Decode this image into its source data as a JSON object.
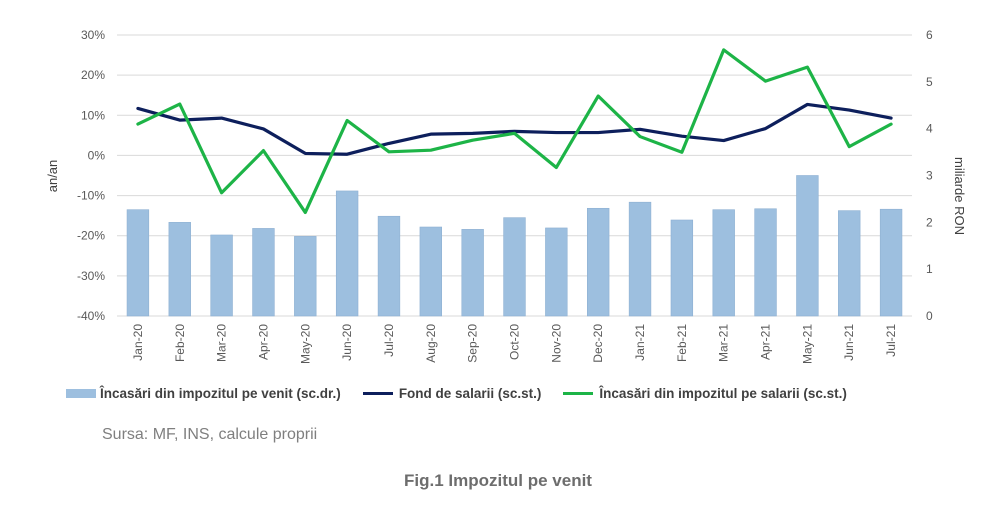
{
  "chart_data": {
    "type": "bar+line",
    "categories": [
      "Jan-20",
      "Feb-20",
      "Mar-20",
      "Apr-20",
      "May-20",
      "Jun-20",
      "Jul-20",
      "Aug-20",
      "Sep-20",
      "Oct-20",
      "Nov-20",
      "Dec-20",
      "Jan-21",
      "Feb-21",
      "Mar-21",
      "Apr-21",
      "May-21",
      "Jun-21",
      "Jul-21"
    ],
    "left_axis": {
      "label": "an/an",
      "min": -40,
      "max": 30,
      "step": 10,
      "unit": "%",
      "ticks": [
        "30%",
        "20%",
        "10%",
        "0%",
        "-10%",
        "-20%",
        "-30%",
        "-40%"
      ]
    },
    "right_axis": {
      "label": "miliarde RON",
      "min": 0,
      "max": 6,
      "step": 1,
      "ticks": [
        "6",
        "5",
        "4",
        "3",
        "2",
        "1",
        "0"
      ]
    },
    "series": [
      {
        "name": "Încasări din impozitul pe venit (sc.dr.)",
        "type": "bar",
        "axis": "right",
        "color": "#9dbfdf",
        "values": [
          2.27,
          2.0,
          1.73,
          1.87,
          1.7,
          2.67,
          2.13,
          1.9,
          1.85,
          2.1,
          1.88,
          2.3,
          2.43,
          2.05,
          2.27,
          2.29,
          3.0,
          2.25,
          2.28
        ]
      },
      {
        "name": "Fond de salarii (sc.st.)",
        "type": "line",
        "axis": "left",
        "color": "#0d1f5c",
        "values": [
          11.7,
          8.8,
          9.3,
          6.6,
          0.5,
          0.3,
          3.0,
          5.3,
          5.5,
          6.0,
          5.7,
          5.7,
          6.5,
          4.8,
          3.7,
          6.7,
          12.7,
          11.3,
          9.3
        ]
      },
      {
        "name": "Încasări din impozitul pe salarii (sc.st.)",
        "type": "line",
        "axis": "left",
        "color": "#1db447",
        "values": [
          7.8,
          12.8,
          -9.3,
          1.2,
          -14.2,
          8.7,
          0.9,
          1.3,
          3.8,
          5.5,
          -3.0,
          14.8,
          4.7,
          0.8,
          26.3,
          18.5,
          22.0,
          2.2,
          7.8
        ]
      }
    ],
    "grid": true,
    "legend_position": "bottom"
  },
  "source_text": "Sursa: MF, INS, calcule proprii",
  "caption": "Fig.1 Impozitul pe venit"
}
